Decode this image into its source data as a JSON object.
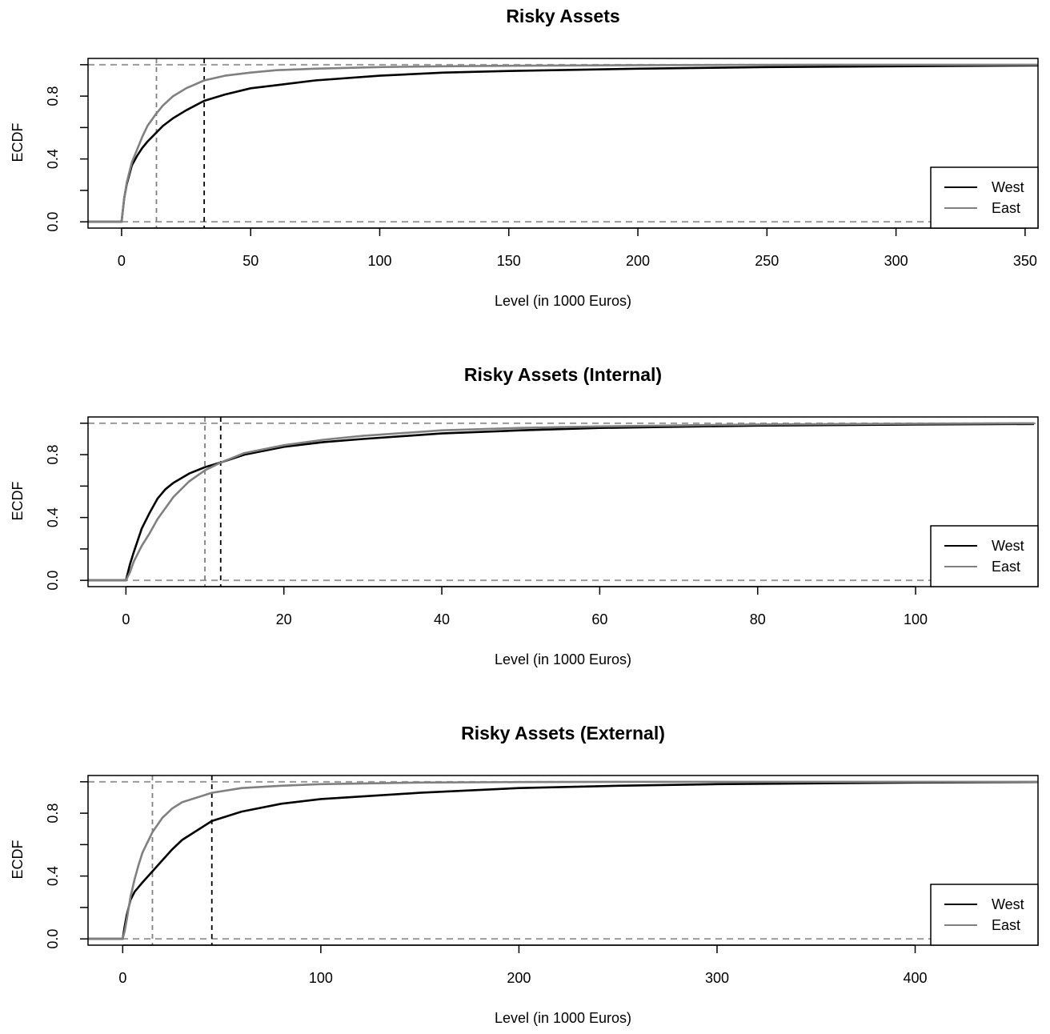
{
  "colors": {
    "west": "#000000",
    "east": "#808080",
    "reference": "#9a9a9a",
    "axis": "#000000"
  },
  "chart_data": [
    {
      "type": "line",
      "title": "Risky Assets",
      "xlabel": "Level (in 1000 Euros)",
      "ylabel": "ECDF",
      "xlim": [
        -13,
        355
      ],
      "ylim": [
        -0.04,
        1.04
      ],
      "xticks": [
        0,
        50,
        100,
        150,
        200,
        250,
        300,
        350
      ],
      "xtick_labels": [
        "0",
        "50",
        "100",
        "150",
        "200",
        "250",
        "300",
        "350"
      ],
      "yticks": [
        0,
        0.2,
        0.4,
        0.6,
        0.8,
        1.0
      ],
      "ytick_labels": [
        "0.0",
        "",
        "0.4",
        "",
        "0.8",
        ""
      ],
      "hlines": [
        0,
        1
      ],
      "vlines": [
        {
          "x": 32,
          "series": "West"
        },
        {
          "x": 13.5,
          "series": "East"
        }
      ],
      "legend": {
        "position": "bottom-right",
        "entries": [
          "West",
          "East"
        ]
      },
      "series": [
        {
          "name": "West",
          "x": [
            0,
            1,
            2,
            4,
            6,
            8,
            10,
            13,
            16,
            20,
            25,
            32,
            40,
            50,
            60,
            75,
            100,
            125,
            150,
            200,
            250,
            300,
            355
          ],
          "y": [
            0,
            0.15,
            0.24,
            0.36,
            0.42,
            0.47,
            0.51,
            0.56,
            0.61,
            0.66,
            0.71,
            0.77,
            0.81,
            0.85,
            0.87,
            0.9,
            0.93,
            0.95,
            0.96,
            0.975,
            0.985,
            0.99,
            0.995
          ]
        },
        {
          "name": "East",
          "x": [
            0,
            1,
            2,
            4,
            6,
            8,
            10,
            13,
            16,
            20,
            25,
            32,
            40,
            50,
            60,
            75,
            100,
            125,
            150,
            200,
            250,
            300,
            355
          ],
          "y": [
            0,
            0.15,
            0.25,
            0.38,
            0.46,
            0.54,
            0.61,
            0.68,
            0.74,
            0.8,
            0.85,
            0.9,
            0.93,
            0.95,
            0.965,
            0.975,
            0.985,
            0.99,
            0.993,
            0.997,
            0.999,
            1.0,
            1.0
          ]
        }
      ]
    },
    {
      "type": "line",
      "title": "Risky Assets (Internal)",
      "xlabel": "Level (in 1000 Euros)",
      "ylabel": "ECDF",
      "xlim": [
        -4.8,
        115.5
      ],
      "ylim": [
        -0.04,
        1.04
      ],
      "xticks": [
        0,
        20,
        40,
        60,
        80,
        100
      ],
      "xtick_labels": [
        "0",
        "20",
        "40",
        "60",
        "80",
        "100"
      ],
      "yticks": [
        0,
        0.2,
        0.4,
        0.6,
        0.8,
        1.0
      ],
      "ytick_labels": [
        "0.0",
        "",
        "0.4",
        "",
        "0.8",
        ""
      ],
      "hlines": [
        0,
        1
      ],
      "vlines": [
        {
          "x": 12,
          "series": "West"
        },
        {
          "x": 10,
          "series": "East"
        }
      ],
      "legend": {
        "position": "bottom-right",
        "entries": [
          "West",
          "East"
        ]
      },
      "series": [
        {
          "name": "West",
          "x": [
            0,
            0.5,
            1,
            2,
            3,
            4,
            5,
            6,
            8,
            10,
            12,
            15,
            20,
            25,
            30,
            40,
            50,
            60,
            80,
            100,
            115
          ],
          "y": [
            0,
            0.1,
            0.18,
            0.33,
            0.43,
            0.52,
            0.58,
            0.62,
            0.68,
            0.72,
            0.75,
            0.8,
            0.85,
            0.88,
            0.9,
            0.935,
            0.955,
            0.97,
            0.985,
            0.992,
            0.995
          ]
        },
        {
          "name": "East",
          "x": [
            0,
            0.5,
            1,
            2,
            3,
            4,
            5,
            6,
            8,
            10,
            12,
            15,
            20,
            25,
            30,
            40,
            50,
            60,
            80,
            100,
            115
          ],
          "y": [
            0,
            0.05,
            0.12,
            0.22,
            0.3,
            0.39,
            0.46,
            0.53,
            0.63,
            0.7,
            0.75,
            0.81,
            0.86,
            0.895,
            0.92,
            0.955,
            0.97,
            0.98,
            0.992,
            0.997,
            1.0
          ]
        }
      ]
    },
    {
      "type": "line",
      "title": "Risky Assets (External)",
      "xlabel": "Level (in 1000 Euros)",
      "ylabel": "ECDF",
      "xlim": [
        -17.5,
        462
      ],
      "ylim": [
        -0.04,
        1.04
      ],
      "xticks": [
        0,
        100,
        200,
        300,
        400
      ],
      "xtick_labels": [
        "0",
        "100",
        "200",
        "300",
        "400"
      ],
      "yticks": [
        0,
        0.2,
        0.4,
        0.6,
        0.8,
        1.0
      ],
      "ytick_labels": [
        "0.0",
        "",
        "0.4",
        "",
        "0.8",
        ""
      ],
      "hlines": [
        0,
        1
      ],
      "vlines": [
        {
          "x": 45,
          "series": "West"
        },
        {
          "x": 15,
          "series": "East"
        }
      ],
      "legend": {
        "position": "bottom-right",
        "entries": [
          "West",
          "East"
        ]
      },
      "series": [
        {
          "name": "West",
          "x": [
            0,
            1,
            2,
            4,
            6,
            8,
            10,
            15,
            20,
            25,
            30,
            45,
            60,
            80,
            100,
            150,
            200,
            250,
            300,
            400,
            462
          ],
          "y": [
            0,
            0.08,
            0.15,
            0.25,
            0.3,
            0.33,
            0.36,
            0.43,
            0.5,
            0.57,
            0.63,
            0.75,
            0.81,
            0.86,
            0.89,
            0.93,
            0.96,
            0.975,
            0.985,
            0.995,
            0.998
          ]
        },
        {
          "name": "East",
          "x": [
            0,
            1,
            2,
            4,
            6,
            8,
            10,
            15,
            20,
            25,
            30,
            45,
            60,
            80,
            100,
            150,
            200,
            250,
            300,
            400,
            462
          ],
          "y": [
            0,
            0.05,
            0.12,
            0.27,
            0.38,
            0.47,
            0.55,
            0.68,
            0.77,
            0.83,
            0.87,
            0.93,
            0.96,
            0.975,
            0.985,
            0.995,
            0.998,
            1.0,
            1.0,
            1.0,
            1.0
          ]
        }
      ]
    }
  ]
}
